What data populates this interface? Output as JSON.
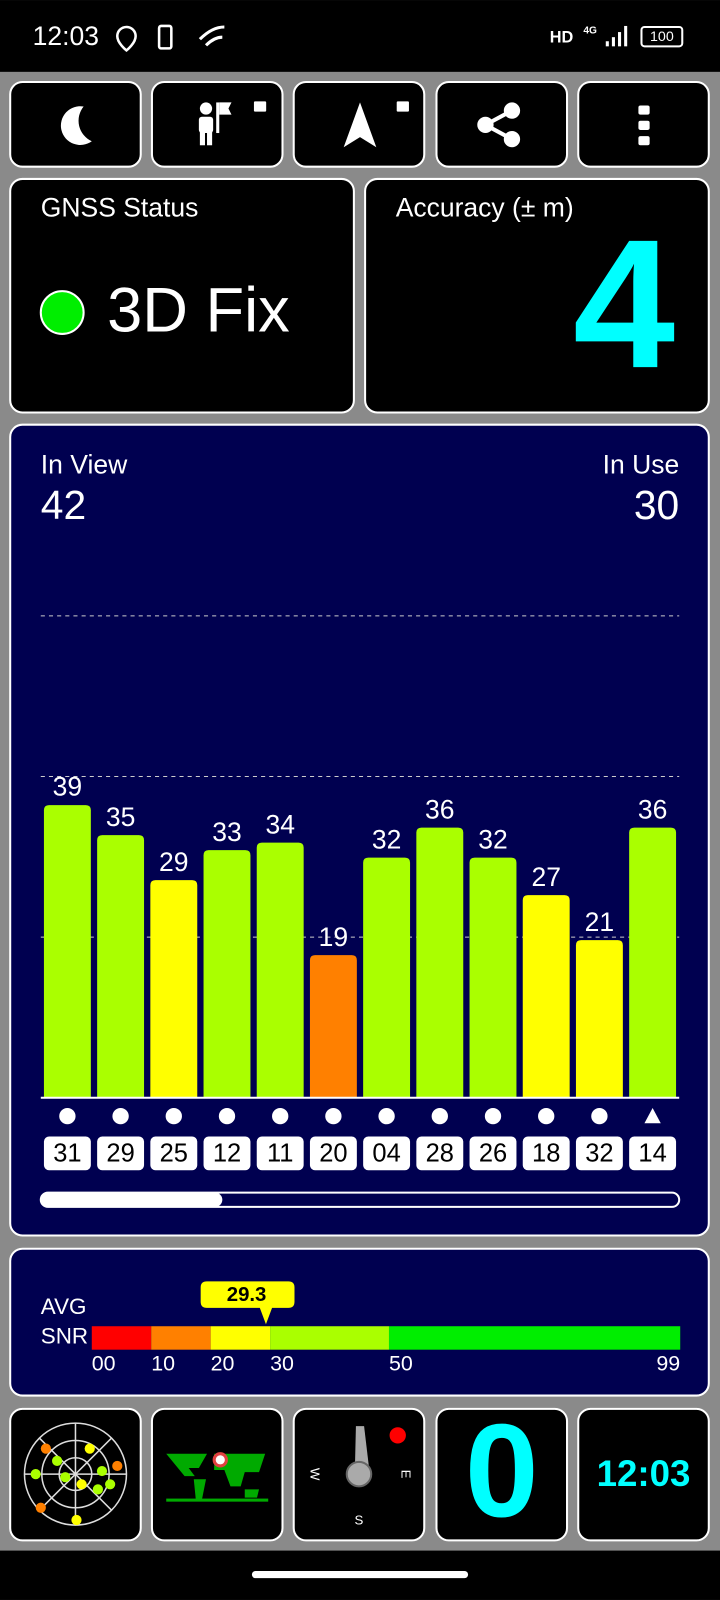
{
  "status_bar": {
    "time": "12:03",
    "hd": "HD",
    "network": "4G",
    "battery": "100"
  },
  "gnss_status": {
    "title": "GNSS Status",
    "fix": "3D Fix"
  },
  "accuracy": {
    "title": "Accuracy (± m)",
    "value": 4
  },
  "satellites": {
    "in_view_label": "In View",
    "in_view": 42,
    "in_use_label": "In Use",
    "in_use": 30
  },
  "chart_data": {
    "type": "bar",
    "categories": [
      "31",
      "29",
      "25",
      "12",
      "11",
      "20",
      "04",
      "28",
      "26",
      "18",
      "32",
      "14"
    ],
    "values": [
      39,
      35,
      29,
      33,
      34,
      19,
      32,
      36,
      32,
      27,
      21,
      36
    ],
    "colors": [
      "#aaff00",
      "#aaff00",
      "#ffff00",
      "#aaff00",
      "#aaff00",
      "#ff8000",
      "#aaff00",
      "#aaff00",
      "#aaff00",
      "#ffff00",
      "#ffff00",
      "#aaff00"
    ],
    "markers": [
      "circle",
      "circle",
      "circle",
      "circle",
      "circle",
      "circle",
      "circle",
      "circle",
      "circle",
      "circle",
      "circle",
      "triangle"
    ],
    "ylim": [
      0,
      85.6
    ],
    "yticks": [
      21.4,
      42.8,
      64.2
    ],
    "grid": true
  },
  "snr": {
    "avg_label": "AVG",
    "snr_label": "SNR",
    "average": 29.3,
    "xlim": [
      0,
      99
    ],
    "ticks": [
      {
        "value": 0,
        "label": "00"
      },
      10,
      20,
      30,
      50,
      99
    ],
    "colors": [
      "#ff0000",
      "#ff8000",
      "#ffff00",
      "#aaff00",
      "#00ee00"
    ]
  },
  "bottom": {
    "speed": 0,
    "clock": "12:03",
    "compass": [
      "W",
      "E",
      "S"
    ]
  }
}
